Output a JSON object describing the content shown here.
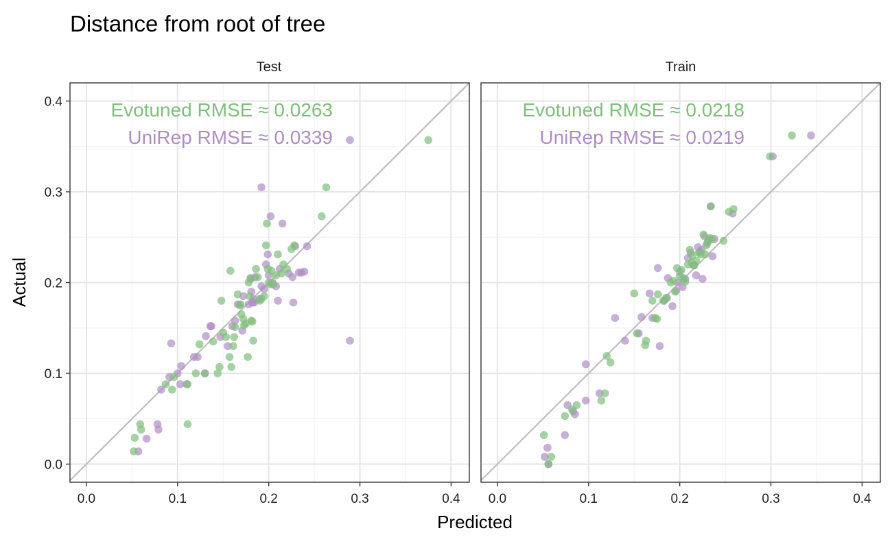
{
  "colors": {
    "evotuned": "#7fbf7b",
    "unirep": "#af8dc3"
  },
  "chart_data": {
    "type": "scatter",
    "title": "Distance from root of tree",
    "xlabel": "Predicted",
    "ylabel": "Actual",
    "xlim": [
      -0.018,
      0.42
    ],
    "ylim": [
      -0.02,
      0.42
    ],
    "ticks": [
      0.0,
      0.1,
      0.2,
      0.3,
      0.4
    ],
    "tick_labels": [
      "0.0",
      "0.1",
      "0.2",
      "0.3",
      "0.4"
    ],
    "grid": true,
    "reference_line": "y = x",
    "panels": [
      {
        "label": "Test",
        "annotations": [
          {
            "series": "Evotuned",
            "text": "Evotuned RMSE ≈ 0.0263"
          },
          {
            "series": "UniRep",
            "text": "UniRep RMSE ≈ 0.0339"
          }
        ],
        "series": [
          {
            "key": "unirep",
            "points": [
              [
                0.057,
                0.014
              ],
              [
                0.066,
                0.028
              ],
              [
                0.078,
                0.044
              ],
              [
                0.079,
                0.038
              ],
              [
                0.082,
                0.082
              ],
              [
                0.091,
                0.096
              ],
              [
                0.093,
                0.133
              ],
              [
                0.1,
                0.1
              ],
              [
                0.103,
                0.088
              ],
              [
                0.104,
                0.108
              ],
              [
                0.11,
                0.088
              ],
              [
                0.118,
                0.118
              ],
              [
                0.122,
                0.118
              ],
              [
                0.13,
                0.1
              ],
              [
                0.131,
                0.141
              ],
              [
                0.136,
                0.152
              ],
              [
                0.137,
                0.152
              ],
              [
                0.147,
                0.14
              ],
              [
                0.155,
                0.13
              ],
              [
                0.16,
                0.152
              ],
              [
                0.163,
                0.158
              ],
              [
                0.166,
                0.176
              ],
              [
                0.171,
                0.147
              ],
              [
                0.172,
                0.185
              ],
              [
                0.178,
                0.176
              ],
              [
                0.18,
                0.204
              ],
              [
                0.181,
                0.19
              ],
              [
                0.182,
                0.178
              ],
              [
                0.183,
                0.182
              ],
              [
                0.184,
                0.178
              ],
              [
                0.185,
                0.206
              ],
              [
                0.19,
                0.182
              ],
              [
                0.192,
                0.196
              ],
              [
                0.192,
                0.305
              ],
              [
                0.195,
                0.193
              ],
              [
                0.197,
                0.22
              ],
              [
                0.199,
                0.231
              ],
              [
                0.2,
                0.208
              ],
              [
                0.202,
                0.273
              ],
              [
                0.204,
                0.2
              ],
              [
                0.208,
                0.196
              ],
              [
                0.21,
                0.18
              ],
              [
                0.212,
                0.215
              ],
              [
                0.215,
                0.265
              ],
              [
                0.222,
                0.21
              ],
              [
                0.226,
                0.206
              ],
              [
                0.227,
                0.178
              ],
              [
                0.229,
                0.24
              ],
              [
                0.233,
                0.211
              ],
              [
                0.236,
                0.211
              ],
              [
                0.239,
                0.212
              ],
              [
                0.242,
                0.24
              ],
              [
                0.289,
                0.357
              ],
              [
                0.289,
                0.136
              ]
            ]
          },
          {
            "key": "evotuned",
            "points": [
              [
                0.052,
                0.014
              ],
              [
                0.053,
                0.029
              ],
              [
                0.059,
                0.044
              ],
              [
                0.06,
                0.038
              ],
              [
                0.087,
                0.088
              ],
              [
                0.094,
                0.082
              ],
              [
                0.096,
                0.096
              ],
              [
                0.111,
                0.044
              ],
              [
                0.111,
                0.088
              ],
              [
                0.12,
                0.1
              ],
              [
                0.124,
                0.132
              ],
              [
                0.13,
                0.1
              ],
              [
                0.139,
                0.135
              ],
              [
                0.144,
                0.1
              ],
              [
                0.146,
                0.107
              ],
              [
                0.148,
                0.18
              ],
              [
                0.15,
                0.145
              ],
              [
                0.153,
                0.14
              ],
              [
                0.157,
                0.118
              ],
              [
                0.158,
                0.213
              ],
              [
                0.159,
                0.107
              ],
              [
                0.161,
                0.13
              ],
              [
                0.162,
                0.14
              ],
              [
                0.163,
                0.151
              ],
              [
                0.166,
                0.187
              ],
              [
                0.168,
                0.175
              ],
              [
                0.169,
                0.176
              ],
              [
                0.17,
                0.165
              ],
              [
                0.172,
                0.16
              ],
              [
                0.173,
                0.153
              ],
              [
                0.175,
                0.155
              ],
              [
                0.177,
                0.118
              ],
              [
                0.178,
                0.2
              ],
              [
                0.179,
                0.185
              ],
              [
                0.18,
                0.205
              ],
              [
                0.181,
                0.158
              ],
              [
                0.182,
                0.157
              ],
              [
                0.183,
                0.136
              ],
              [
                0.186,
                0.215
              ],
              [
                0.188,
                0.206
              ],
              [
                0.19,
                0.18
              ],
              [
                0.192,
                0.182
              ],
              [
                0.195,
                0.185
              ],
              [
                0.197,
                0.241
              ],
              [
                0.198,
                0.265
              ],
              [
                0.199,
                0.215
              ],
              [
                0.2,
                0.2
              ],
              [
                0.202,
                0.198
              ],
              [
                0.203,
                0.213
              ],
              [
                0.205,
                0.198
              ],
              [
                0.208,
                0.208
              ],
              [
                0.21,
                0.231
              ],
              [
                0.214,
                0.21
              ],
              [
                0.216,
                0.22
              ],
              [
                0.22,
                0.215
              ],
              [
                0.225,
                0.237
              ],
              [
                0.228,
                0.241
              ],
              [
                0.258,
                0.273
              ],
              [
                0.263,
                0.305
              ],
              [
                0.375,
                0.357
              ]
            ]
          }
        ]
      },
      {
        "label": "Train",
        "annotations": [
          {
            "series": "Evotuned",
            "text": "Evotuned RMSE ≈ 0.0218"
          },
          {
            "series": "UniRep",
            "text": "UniRep RMSE ≈ 0.0219"
          }
        ],
        "series": [
          {
            "key": "unirep",
            "points": [
              [
                0.052,
                0.008
              ],
              [
                0.055,
                0.018
              ],
              [
                0.056,
                0.0
              ],
              [
                0.074,
                0.032
              ],
              [
                0.077,
                0.065
              ],
              [
                0.083,
                0.058
              ],
              [
                0.085,
                0.055
              ],
              [
                0.097,
                0.11
              ],
              [
                0.097,
                0.07
              ],
              [
                0.112,
                0.078
              ],
              [
                0.129,
                0.161
              ],
              [
                0.14,
                0.136
              ],
              [
                0.155,
                0.144
              ],
              [
                0.158,
                0.162
              ],
              [
                0.167,
                0.188
              ],
              [
                0.17,
                0.161
              ],
              [
                0.176,
                0.216
              ],
              [
                0.178,
                0.13
              ],
              [
                0.183,
                0.18
              ],
              [
                0.186,
                0.183
              ],
              [
                0.187,
                0.205
              ],
              [
                0.192,
                0.174
              ],
              [
                0.196,
                0.191
              ],
              [
                0.198,
                0.2
              ],
              [
                0.2,
                0.212
              ],
              [
                0.203,
                0.195
              ],
              [
                0.206,
                0.204
              ],
              [
                0.209,
                0.227
              ],
              [
                0.212,
                0.233
              ],
              [
                0.215,
                0.219
              ],
              [
                0.218,
                0.208
              ],
              [
                0.22,
                0.239
              ],
              [
                0.222,
                0.234
              ],
              [
                0.224,
                0.236
              ],
              [
                0.225,
                0.204
              ],
              [
                0.227,
                0.251
              ],
              [
                0.23,
                0.243
              ],
              [
                0.232,
                0.247
              ],
              [
                0.234,
                0.284
              ],
              [
                0.236,
                0.229
              ],
              [
                0.238,
                0.248
              ],
              [
                0.258,
                0.276
              ],
              [
                0.302,
                0.339
              ],
              [
                0.344,
                0.362
              ]
            ]
          },
          {
            "key": "evotuned",
            "points": [
              [
                0.051,
                0.032
              ],
              [
                0.056,
                0.0
              ],
              [
                0.059,
                0.008
              ],
              [
                0.074,
                0.053
              ],
              [
                0.082,
                0.06
              ],
              [
                0.087,
                0.065
              ],
              [
                0.114,
                0.07
              ],
              [
                0.118,
                0.078
              ],
              [
                0.12,
                0.119
              ],
              [
                0.124,
                0.112
              ],
              [
                0.15,
                0.188
              ],
              [
                0.153,
                0.144
              ],
              [
                0.162,
                0.131
              ],
              [
                0.163,
                0.136
              ],
              [
                0.17,
                0.18
              ],
              [
                0.173,
                0.161
              ],
              [
                0.175,
                0.16
              ],
              [
                0.176,
                0.187
              ],
              [
                0.182,
                0.18
              ],
              [
                0.185,
                0.183
              ],
              [
                0.19,
                0.2
              ],
              [
                0.193,
                0.202
              ],
              [
                0.195,
                0.19
              ],
              [
                0.197,
                0.216
              ],
              [
                0.2,
                0.207
              ],
              [
                0.202,
                0.214
              ],
              [
                0.204,
                0.205
              ],
              [
                0.206,
                0.201
              ],
              [
                0.209,
                0.22
              ],
              [
                0.211,
                0.236
              ],
              [
                0.213,
                0.222
              ],
              [
                0.214,
                0.23
              ],
              [
                0.216,
                0.219
              ],
              [
                0.218,
                0.224
              ],
              [
                0.221,
                0.233
              ],
              [
                0.223,
                0.231
              ],
              [
                0.226,
                0.253
              ],
              [
                0.228,
                0.231
              ],
              [
                0.229,
                0.241
              ],
              [
                0.231,
                0.245
              ],
              [
                0.233,
                0.249
              ],
              [
                0.234,
                0.284
              ],
              [
                0.236,
                0.248
              ],
              [
                0.248,
                0.246
              ],
              [
                0.254,
                0.278
              ],
              [
                0.259,
                0.281
              ],
              [
                0.299,
                0.339
              ],
              [
                0.323,
                0.362
              ]
            ]
          }
        ]
      }
    ]
  }
}
